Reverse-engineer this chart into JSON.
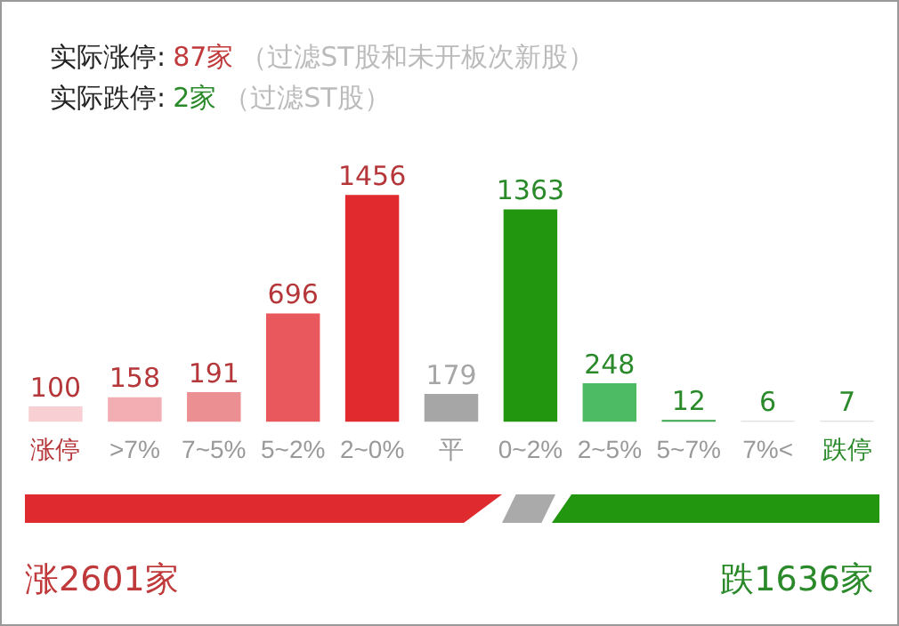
{
  "chart_data": {
    "type": "bar",
    "categories": [
      "涨停",
      ">7%",
      "7~5%",
      "5~2%",
      "2~0%",
      "平",
      "0~2%",
      "2~5%",
      "5~7%",
      "7%<",
      "跌停"
    ],
    "values": [
      100,
      158,
      191,
      696,
      1456,
      179,
      1363,
      248,
      12,
      6,
      7
    ],
    "colors": [
      "#f8d0d4",
      "#f3aeb3",
      "#ec8f93",
      "#e8585c",
      "#e02a2e",
      "#a6a6a6",
      "#23960f",
      "#4cbb63",
      "#3aa34b",
      "#d6d6d6",
      "#d6d6d6"
    ],
    "data_labels": true,
    "tick_labels": "x",
    "legend": false,
    "annotations": [
      "实际涨停:",
      "87家",
      "（过滤ST股和未开板次新股）",
      "实际跌停:",
      "2家",
      "（过滤ST股）",
      "涨2601家",
      "跌1636家"
    ]
  }
}
